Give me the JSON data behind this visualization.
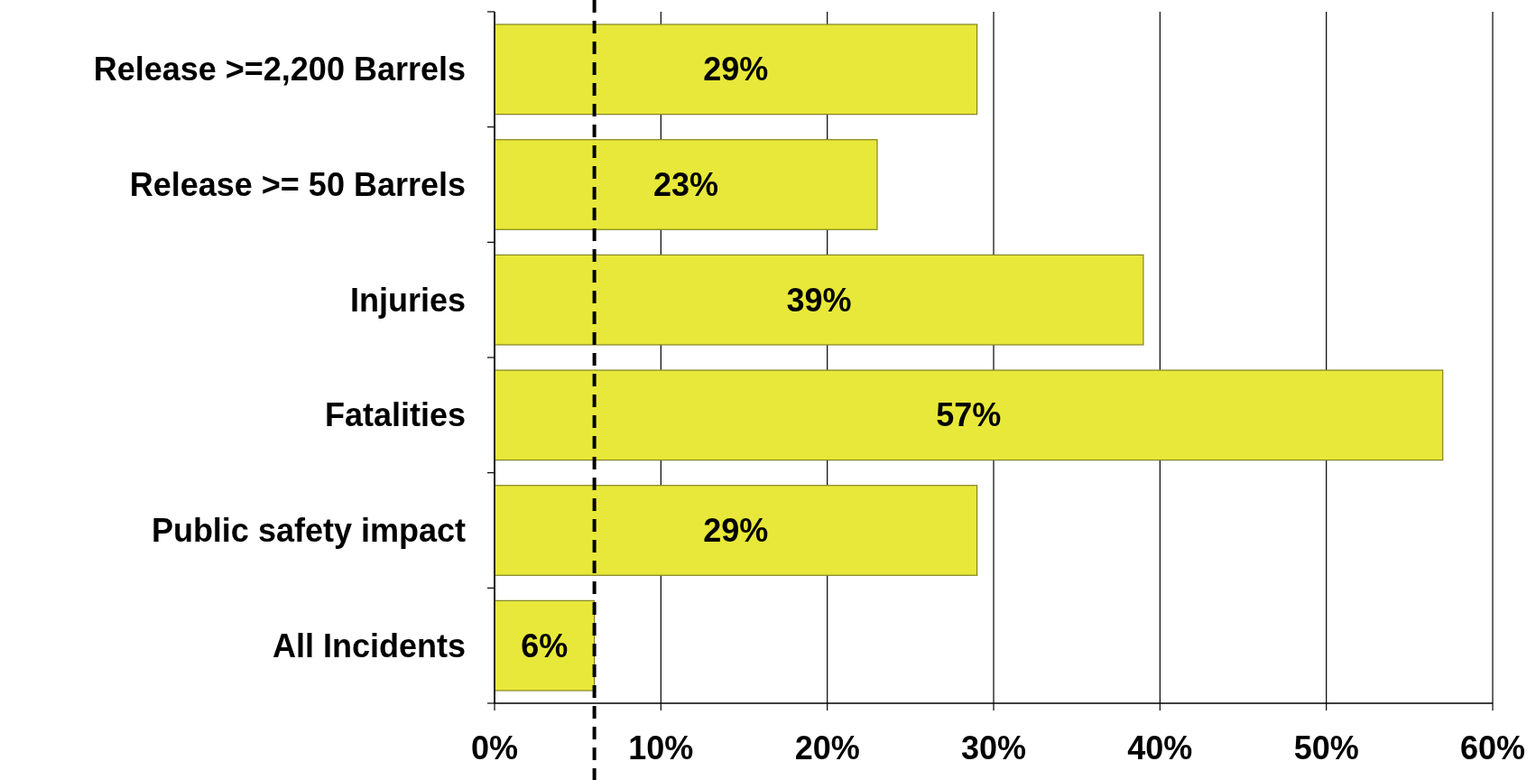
{
  "chart_data": {
    "type": "bar",
    "orientation": "horizontal",
    "categories": [
      "Release >=2,200 Barrels",
      "Release >= 50 Barrels",
      "Injuries",
      "Fatalities",
      "Public safety impact",
      "All Incidents"
    ],
    "values": [
      29,
      23,
      39,
      57,
      29,
      6
    ],
    "value_labels": [
      "29%",
      "23%",
      "39%",
      "57%",
      "29%",
      "6%"
    ],
    "color": "#e8e83a",
    "xlim": [
      0,
      60
    ],
    "xticks": [
      {
        "value": 0,
        "label": "0%"
      },
      {
        "value": 10,
        "label": "10%"
      },
      {
        "value": 20,
        "label": "20%"
      },
      {
        "value": 30,
        "label": "30%"
      },
      {
        "value": 40,
        "label": "40%"
      },
      {
        "value": 50,
        "label": "50%"
      },
      {
        "value": 60,
        "label": "60%"
      }
    ],
    "grid": "x",
    "ref_lines": [
      {
        "axis": "x",
        "value": 6,
        "color": "#000000",
        "line_style": "dashed"
      }
    ]
  }
}
